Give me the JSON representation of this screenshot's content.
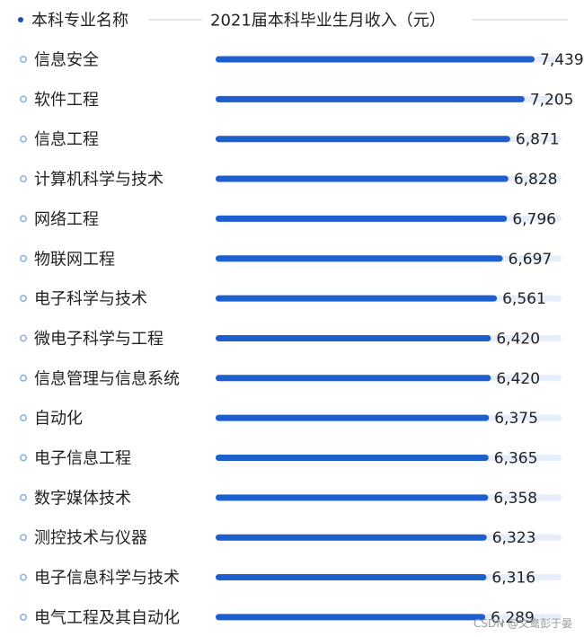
{
  "header": {
    "category_column": "本科专业名称",
    "value_column": "2021届本科毕业生月收入（元）"
  },
  "chart_data": {
    "type": "bar",
    "orientation": "horizontal",
    "categories": [
      "信息安全",
      "软件工程",
      "信息工程",
      "计算机科学与技术",
      "网络工程",
      "物联网工程",
      "电子科学与技术",
      "微电子科学与工程",
      "信息管理与信息系统",
      "自动化",
      "电子信息工程",
      "数字媒体技术",
      "测控技术与仪器",
      "电子信息科学与技术",
      "电气工程及其自动化"
    ],
    "values": [
      7439,
      7205,
      6871,
      6828,
      6796,
      6697,
      6561,
      6420,
      6420,
      6375,
      6365,
      6358,
      6323,
      6316,
      6289
    ],
    "value_labels": [
      "7,439",
      "7,205",
      "6,871",
      "6,828",
      "6,796",
      "6,697",
      "6,561",
      "6,420",
      "6,420",
      "6,375",
      "6,365",
      "6,358",
      "6,323",
      "6,316",
      "6,289"
    ],
    "xlim": [
      0,
      7439
    ],
    "grid": false,
    "legend": "none"
  },
  "colors": {
    "bar": "#1e5fd0",
    "track": "#e6eef9",
    "bullet": "#8fb4de",
    "header_bullet": "#1f4fa8",
    "header_line": "#cfcfcf"
  },
  "watermark": "CSDN @文鸯彭于晏"
}
